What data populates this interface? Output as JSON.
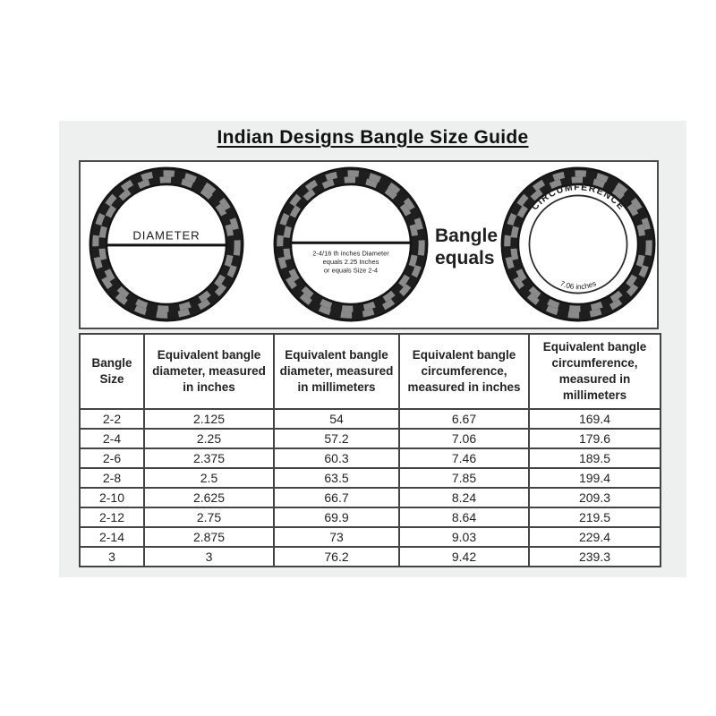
{
  "title": "Indian Designs Bangle Size Guide",
  "diagram": {
    "bangle_diameter": {
      "label": "DIAMETER"
    },
    "bangle_sized": {
      "caption": [
        "2-4/16 th inches Diameter",
        "equals 2.25 Inches",
        "or equals Size 2-4"
      ]
    },
    "equals_label": {
      "line1": "Bangle",
      "line2": "equals"
    },
    "bangle_circumference": {
      "arc_label": "CIRCUMFERENCE",
      "measure_label": "7.06 inches"
    }
  },
  "table": {
    "headers": [
      "Bangle Size",
      "Equivalent bangle diameter, measured in inches",
      "Equivalent bangle diameter, measured in millimeters",
      "Equivalent bangle circumference, measured in inches",
      "Equivalent bangle circumference, measured in millimeters"
    ],
    "rows": [
      [
        "2-2",
        "2.125",
        "54",
        "6.67",
        "169.4"
      ],
      [
        "2-4",
        "2.25",
        "57.2",
        "7.06",
        "179.6"
      ],
      [
        "2-6",
        "2.375",
        "60.3",
        "7.46",
        "189.5"
      ],
      [
        "2-8",
        "2.5",
        "63.5",
        "7.85",
        "199.4"
      ],
      [
        "2-10",
        "2.625",
        "66.7",
        "8.24",
        "209.3"
      ],
      [
        "2-12",
        "2.75",
        "69.9",
        "8.64",
        "219.5"
      ],
      [
        "2-14",
        "2.875",
        "73",
        "9.03",
        "229.4"
      ],
      [
        "3",
        "3",
        "76.2",
        "9.42",
        "239.3"
      ]
    ]
  },
  "colors": {
    "panel_bg": "#eef0ef",
    "ink": "#1c1c1c",
    "ring_dark": "#1e1e1e",
    "ring_gray": "#8a8a8a",
    "table_border": "#434343"
  }
}
